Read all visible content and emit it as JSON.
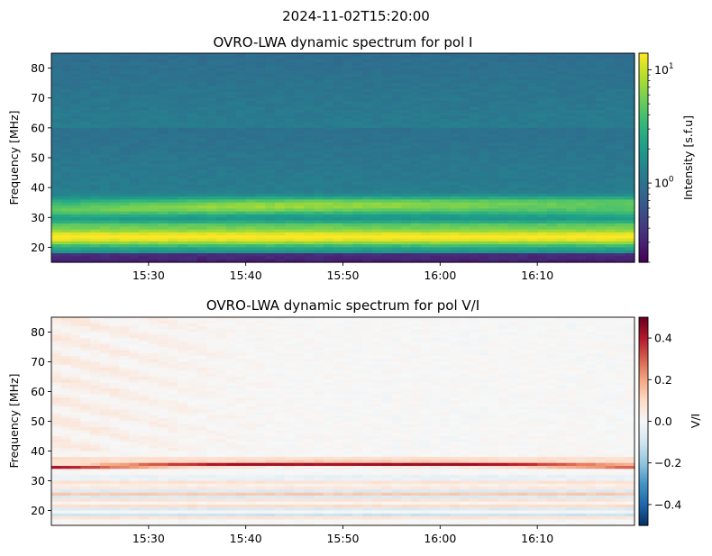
{
  "figure": {
    "suptitle": "2024-11-02T15:20:00"
  },
  "chart_data": [
    {
      "type": "heatmap",
      "title": "OVRO-LWA dynamic spectrum for pol I",
      "ylabel": "Frequency [MHz]",
      "xlabel": "",
      "x_range": [
        "15:20",
        "16:20"
      ],
      "x_ticks": [
        "15:30",
        "15:40",
        "15:50",
        "16:00",
        "16:10"
      ],
      "ylim": [
        15,
        85
      ],
      "y_ticks": [
        20,
        30,
        40,
        50,
        60,
        70,
        80
      ],
      "colorbar": {
        "label": "Intensity [s.f.u]",
        "scale": "log",
        "range": [
          0.2,
          14
        ],
        "ticks": [
          {
            "base": "10",
            "exp": "0",
            "value": 1
          },
          {
            "base": "10",
            "exp": "1",
            "value": 10
          }
        ],
        "colormap": "viridis"
      },
      "features": [
        {
          "freq_range": [
            36,
            85
          ],
          "intensity_sfu": 0.45,
          "note": "background"
        },
        {
          "freq_range": [
            30,
            36
          ],
          "intensity_sfu": 4,
          "note": "band ~31-35 MHz, peaking near 15:35-15:45"
        },
        {
          "freq_range": [
            19,
            27
          ],
          "intensity_sfu": 8,
          "note": "bright band ~20-26 MHz"
        },
        {
          "freq_range": [
            15,
            18
          ],
          "intensity_sfu": 0.25,
          "note": "dark band"
        }
      ]
    },
    {
      "type": "heatmap",
      "title": "OVRO-LWA dynamic spectrum for pol V/I",
      "ylabel": "Frequency [MHz]",
      "xlabel": "",
      "x_range": [
        "15:20",
        "16:20"
      ],
      "x_ticks": [
        "15:30",
        "15:40",
        "15:50",
        "16:00",
        "16:10"
      ],
      "ylim": [
        15,
        85
      ],
      "y_ticks": [
        20,
        30,
        40,
        50,
        60,
        70,
        80
      ],
      "colorbar": {
        "label": "V/I",
        "scale": "linear",
        "range": [
          -0.5,
          0.5
        ],
        "ticks": [
          "−0.4",
          "−0.2",
          "0.0",
          "0.2",
          "0.4"
        ],
        "tick_values": [
          -0.4,
          -0.2,
          0.0,
          0.2,
          0.4
        ],
        "colormap": "RdBu_r"
      },
      "features": [
        {
          "freq_range": [
            40,
            85
          ],
          "v_over_i": 0.05,
          "note": "faint positive streaks 15:20-15:40"
        },
        {
          "freq_range": [
            33,
            37
          ],
          "v_over_i": 0.4,
          "note": "thin positive line drifting ~35 MHz"
        },
        {
          "freq_range": [
            17,
            32
          ],
          "v_over_i": -0.1,
          "note": "mixed weak negative/positive"
        }
      ]
    }
  ],
  "colors": {
    "viridis": [
      "#440154",
      "#482878",
      "#3e4989",
      "#31688e",
      "#26828e",
      "#1f9e89",
      "#35b779",
      "#6ece58",
      "#b5de2b",
      "#fde725"
    ],
    "rdbu_r": [
      "#053061",
      "#2166ac",
      "#4393c3",
      "#92c5de",
      "#d1e5f0",
      "#f7f7f7",
      "#fddbc7",
      "#f4a582",
      "#d6604d",
      "#b2182b",
      "#67001f"
    ]
  }
}
